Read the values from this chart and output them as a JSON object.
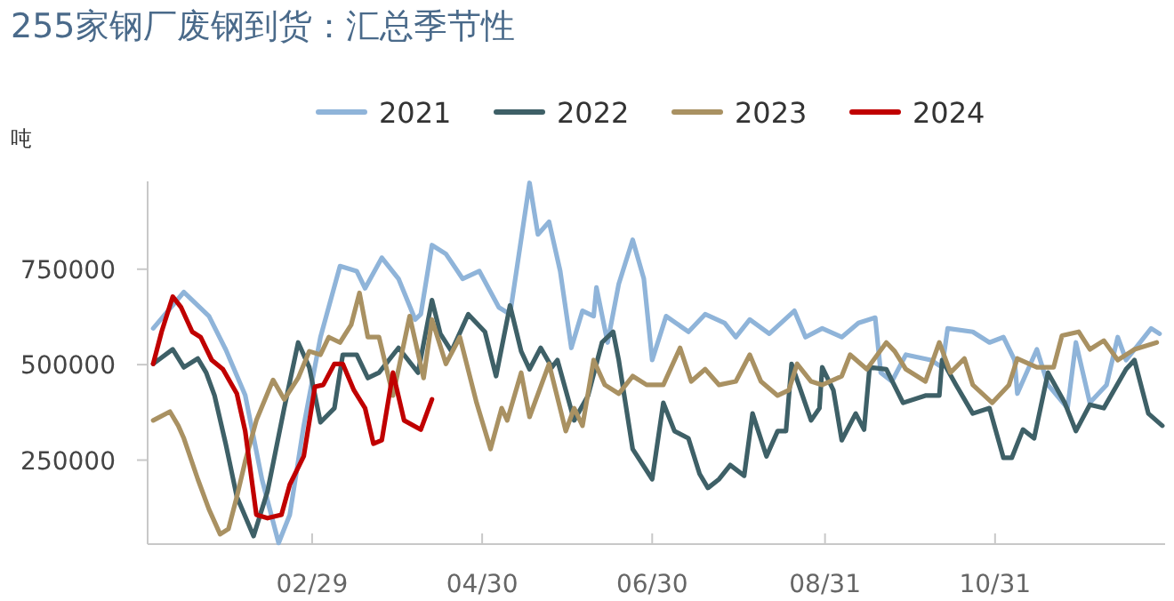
{
  "chart_data": {
    "type": "line",
    "title": "255家钢厂废钢到货：汇总季节性",
    "ylabel": "吨",
    "xlim": [
      "--01-01",
      "--12-31"
    ],
    "xticks": [
      {
        "value": "--02-29",
        "label": "02/29"
      },
      {
        "value": "--04-30",
        "label": "04/30"
      },
      {
        "value": "--06-30",
        "label": "06/30"
      },
      {
        "value": "--08-31",
        "label": "08/31"
      },
      {
        "value": "--10-31",
        "label": "10/31"
      }
    ],
    "ylim": [
      30000,
      980000
    ],
    "yticks": [
      250000,
      500000,
      750000
    ],
    "legend": "top",
    "grid": false,
    "marker": "none",
    "line_style": "solid",
    "series": [
      {
        "name": "2021",
        "color": "#8fb4d9",
        "x": [
          "--01-03",
          "--01-14",
          "--01-23",
          "--01-29",
          "--02-05",
          "--02-11",
          "--02-17",
          "--02-21",
          "--02-26",
          "--03-03",
          "--03-10",
          "--03-16",
          "--03-19",
          "--03-25",
          "--03-31",
          "--04-06",
          "--04-08",
          "--04-12",
          "--04-17",
          "--04-23",
          "--04-29",
          "--05-06",
          "--05-10",
          "--05-17",
          "--05-20",
          "--05-24",
          "--05-28",
          "--06-01",
          "--06-05",
          "--06-09",
          "--06-10",
          "--06-14",
          "--06-18",
          "--06-23",
          "--06-27",
          "--06-30",
          "--07-05",
          "--07-13",
          "--07-19",
          "--07-26",
          "--07-30",
          "--08-04",
          "--08-11",
          "--08-20",
          "--08-24",
          "--08-30",
          "--09-06",
          "--09-12",
          "--09-18",
          "--09-20",
          "--09-24",
          "--09-29",
          "--10-08",
          "--10-12",
          "--10-14",
          "--10-23",
          "--10-29",
          "--11-03",
          "--11-07",
          "--11-08",
          "--11-15",
          "--11-19",
          "--11-26",
          "--11-29",
          "--12-04",
          "--12-10",
          "--12-14",
          "--12-17",
          "--12-26",
          "--12-29"
        ],
        "values": [
          595000,
          690000,
          627000,
          540000,
          420000,
          200000,
          33000,
          107000,
          340000,
          572000,
          758000,
          745000,
          700000,
          780000,
          725000,
          618000,
          632000,
          813000,
          790000,
          725000,
          745000,
          650000,
          632000,
          976000,
          841000,
          874000,
          745000,
          544000,
          641000,
          627000,
          702000,
          558000,
          711000,
          827000,
          725000,
          512000,
          627000,
          586000,
          632000,
          609000,
          572000,
          618000,
          581000,
          641000,
          572000,
          595000,
          572000,
          609000,
          623000,
          479000,
          456000,
          526000,
          512000,
          493000,
          595000,
          586000,
          558000,
          572000,
          512000,
          424000,
          540000,
          447000,
          386000,
          558000,
          400000,
          447000,
          572000,
          512000,
          595000,
          581000
        ]
      },
      {
        "name": "2022",
        "color": "#3e6067",
        "x": [
          "--01-03",
          "--01-10",
          "--01-14",
          "--01-19",
          "--01-22",
          "--01-25",
          "--01-29",
          "--02-02",
          "--02-08",
          "--02-13",
          "--02-19",
          "--02-24",
          "--02-28",
          "--03-03",
          "--03-08",
          "--03-11",
          "--03-16",
          "--03-20",
          "--03-24",
          "--03-31",
          "--04-07",
          "--04-12",
          "--04-15",
          "--04-19",
          "--04-25",
          "--05-01",
          "--05-05",
          "--05-10",
          "--05-14",
          "--05-17",
          "--05-21",
          "--05-25",
          "--05-27",
          "--06-02",
          "--06-07",
          "--06-12",
          "--06-16",
          "--06-18",
          "--06-23",
          "--06-30",
          "--07-04",
          "--07-08",
          "--07-13",
          "--07-17",
          "--07-20",
          "--07-24",
          "--07-28",
          "--08-02",
          "--08-05",
          "--08-10",
          "--08-14",
          "--08-17",
          "--08-19",
          "--08-26",
          "--08-29",
          "--08-30",
          "--09-03",
          "--09-06",
          "--09-11",
          "--09-14",
          "--09-16",
          "--09-22",
          "--09-28",
          "--10-06",
          "--10-11",
          "--10-12",
          "--10-17",
          "--10-23",
          "--10-29",
          "--11-03",
          "--11-06",
          "--11-10",
          "--11-14",
          "--11-19",
          "--11-25",
          "--11-29",
          "--12-04",
          "--12-09",
          "--12-17",
          "--12-20",
          "--12-25",
          "--12-30"
        ],
        "values": [
          502000,
          540000,
          493000,
          516000,
          479000,
          419000,
          293000,
          154000,
          51000,
          168000,
          386000,
          558000,
          493000,
          349000,
          386000,
          526000,
          526000,
          465000,
          479000,
          544000,
          479000,
          669000,
          581000,
          535000,
          632000,
          586000,
          470000,
          655000,
          535000,
          488000,
          544000,
          493000,
          512000,
          354000,
          419000,
          558000,
          586000,
          512000,
          279000,
          200000,
          400000,
          326000,
          307000,
          214000,
          177000,
          200000,
          237000,
          209000,
          372000,
          260000,
          326000,
          326000,
          502000,
          354000,
          386000,
          493000,
          433000,
          302000,
          372000,
          330000,
          493000,
          488000,
          400000,
          419000,
          419000,
          512000,
          447000,
          372000,
          386000,
          256000,
          256000,
          330000,
          307000,
          479000,
          400000,
          326000,
          395000,
          386000,
          488000,
          512000,
          372000,
          340000
        ]
      },
      {
        "name": "2023",
        "color": "#a99162",
        "x": [
          "--01-03",
          "--01-09",
          "--01-12",
          "--01-14",
          "--01-19",
          "--01-23",
          "--01-27",
          "--01-30",
          "--02-02",
          "--02-05",
          "--02-09",
          "--02-15",
          "--02-19",
          "--02-24",
          "--02-28",
          "--03-03",
          "--03-06",
          "--03-10",
          "--03-14",
          "--03-17",
          "--03-20",
          "--03-24",
          "--03-29",
          "--04-04",
          "--04-09",
          "--04-12",
          "--04-17",
          "--04-22",
          "--04-28",
          "--05-03",
          "--05-07",
          "--05-09",
          "--05-14",
          "--05-17",
          "--05-24",
          "--05-30",
          "--06-02",
          "--06-05",
          "--06-09",
          "--06-13",
          "--06-18",
          "--06-23",
          "--06-28",
          "--07-04",
          "--07-10",
          "--07-14",
          "--07-19",
          "--07-24",
          "--07-30",
          "--08-04",
          "--08-08",
          "--08-14",
          "--08-18",
          "--08-21",
          "--08-26",
          "--08-30",
          "--09-06",
          "--09-09",
          "--09-15",
          "--09-22",
          "--09-25",
          "--09-29",
          "--10-06",
          "--10-11",
          "--10-15",
          "--10-20",
          "--10-23",
          "--10-30",
          "--11-05",
          "--11-08",
          "--11-15",
          "--11-21",
          "--11-24",
          "--11-30",
          "--12-04",
          "--12-09",
          "--12-14",
          "--12-20",
          "--12-28"
        ],
        "values": [
          354000,
          377000,
          340000,
          307000,
          200000,
          121000,
          56000,
          70000,
          154000,
          247000,
          354000,
          460000,
          409000,
          465000,
          535000,
          526000,
          572000,
          558000,
          604000,
          688000,
          572000,
          572000,
          419000,
          627000,
          465000,
          618000,
          502000,
          572000,
          400000,
          279000,
          386000,
          354000,
          479000,
          363000,
          502000,
          326000,
          386000,
          340000,
          512000,
          447000,
          424000,
          470000,
          447000,
          447000,
          544000,
          456000,
          488000,
          447000,
          456000,
          526000,
          456000,
          419000,
          433000,
          502000,
          456000,
          447000,
          470000,
          526000,
          488000,
          558000,
          535000,
          488000,
          456000,
          558000,
          479000,
          516000,
          447000,
          400000,
          447000,
          516000,
          493000,
          493000,
          576000,
          586000,
          540000,
          563000,
          512000,
          540000,
          558000
        ]
      },
      {
        "name": "2024",
        "color": "#c00000",
        "x": [
          "--01-03",
          "--01-06",
          "--01-10",
          "--01-13",
          "--01-17",
          "--01-20",
          "--01-24",
          "--01-28",
          "--02-02",
          "--02-05",
          "--02-09",
          "--02-13",
          "--02-18",
          "--02-21",
          "--02-26",
          "--03-01",
          "--03-04",
          "--03-08",
          "--03-11",
          "--03-15",
          "--03-19",
          "--03-22",
          "--03-25",
          "--03-29",
          "--04-02",
          "--04-08",
          "--04-12"
        ],
        "values": [
          502000,
          586000,
          678000,
          650000,
          586000,
          572000,
          512000,
          488000,
          424000,
          326000,
          107000,
          98000,
          107000,
          186000,
          260000,
          442000,
          447000,
          502000,
          502000,
          433000,
          386000,
          293000,
          302000,
          479000,
          354000,
          330000,
          409000
        ]
      }
    ]
  }
}
